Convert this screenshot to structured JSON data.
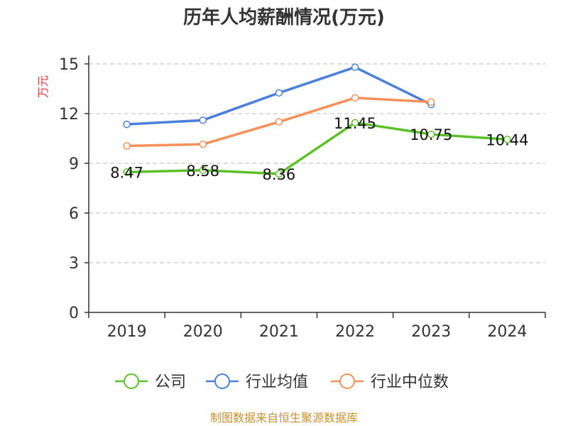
{
  "chart_data": {
    "type": "line",
    "title": "历年人均薪酬情况(万元)",
    "ylabel": "万元",
    "xlabel": "",
    "categories": [
      "2019",
      "2020",
      "2021",
      "2022",
      "2023",
      "2024"
    ],
    "ylim": [
      0,
      15
    ],
    "yticks": [
      0,
      3,
      6,
      9,
      12,
      15
    ],
    "grid": true,
    "legend_position": "bottom",
    "series": [
      {
        "name": "公司",
        "color": "#5cc129",
        "values": [
          8.47,
          8.58,
          8.36,
          11.45,
          10.75,
          10.44
        ],
        "labels": [
          "8.47",
          "8.58",
          "8.36",
          "11.45",
          "10.75",
          "10.44"
        ]
      },
      {
        "name": "行业均值",
        "color": "#4a7fdb",
        "values": [
          11.35,
          11.6,
          13.25,
          14.8,
          12.55,
          null
        ]
      },
      {
        "name": "行业中位数",
        "color": "#f5905a",
        "values": [
          10.05,
          10.15,
          11.5,
          12.95,
          12.7,
          null
        ]
      }
    ],
    "source": "制图数据来自恒生聚源数据库"
  }
}
